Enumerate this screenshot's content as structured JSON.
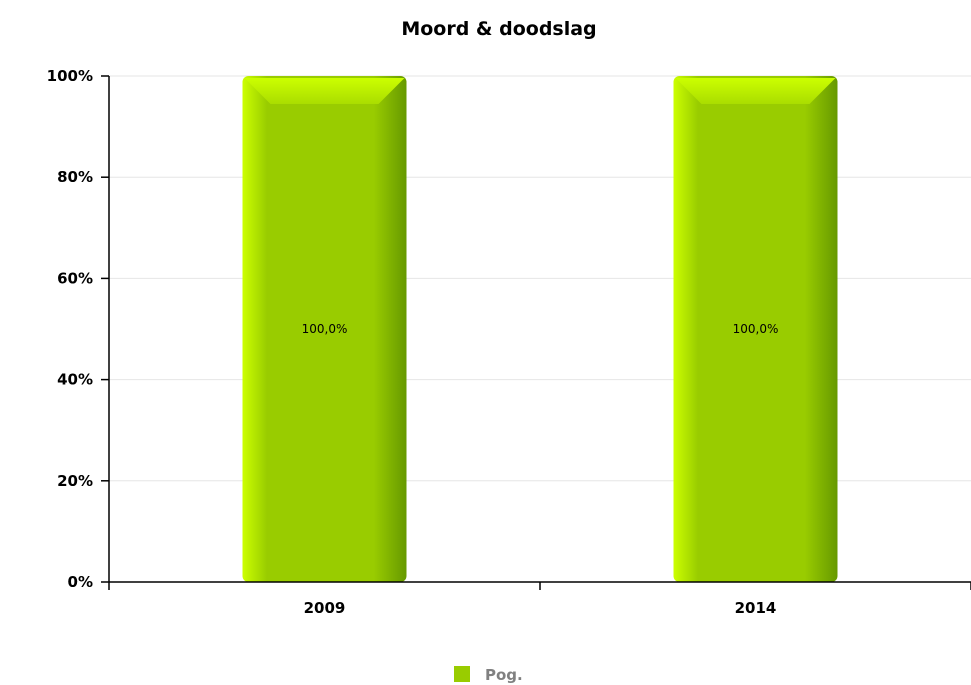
{
  "chart_data": {
    "type": "bar",
    "title": "Moord & doodslag",
    "categories": [
      "2009",
      "2014"
    ],
    "series": [
      {
        "name": "Pog.",
        "values": [
          100.0,
          100.0
        ],
        "labels": [
          "100,0%",
          "100,0%"
        ],
        "color": "#99cc00"
      }
    ],
    "yticks": [
      "0%",
      "20%",
      "40%",
      "60%",
      "80%",
      "100%"
    ],
    "ylim": [
      0,
      100
    ],
    "grid": true,
    "legend_position": "bottom-center"
  }
}
